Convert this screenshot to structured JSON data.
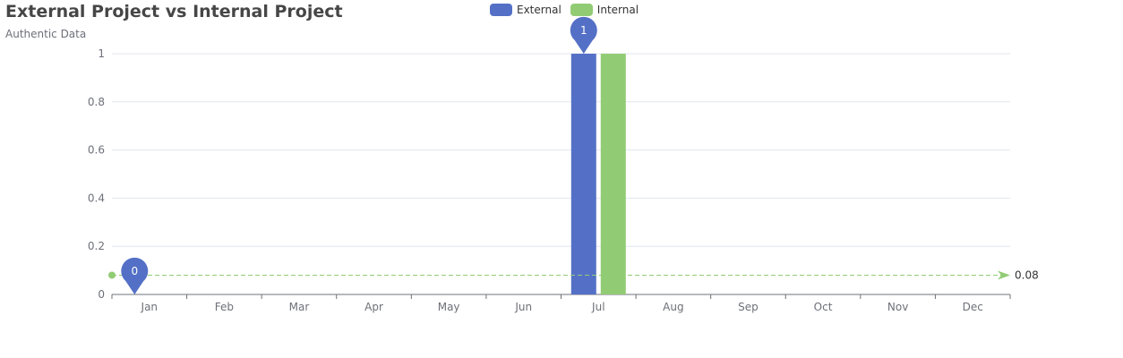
{
  "chart_data": {
    "type": "bar",
    "title": "External Project vs Internal Project",
    "subtitle": "Authentic Data",
    "categories": [
      "Jan",
      "Feb",
      "Mar",
      "Apr",
      "May",
      "Jun",
      "Jul",
      "Aug",
      "Sep",
      "Oct",
      "Nov",
      "Dec"
    ],
    "series": [
      {
        "name": "External",
        "values": [
          0,
          0,
          0,
          0,
          0,
          0,
          1,
          0,
          0,
          0,
          0,
          0
        ]
      },
      {
        "name": "Internal",
        "values": [
          0,
          0,
          0,
          0,
          0,
          0,
          1,
          0,
          0,
          0,
          0,
          0
        ]
      }
    ],
    "ylim": [
      0,
      1
    ],
    "yticks": [
      0,
      0.2,
      0.4,
      0.6,
      0.8,
      1
    ],
    "y_tick_labels": [
      "0",
      "0.2",
      "0.4",
      "0.6",
      "0.8",
      "1"
    ],
    "mark_points": [
      {
        "series": "External",
        "label": "1",
        "category": "Jul",
        "value": 1
      },
      {
        "series": "External",
        "label": "0",
        "category": "Jan",
        "value": 0
      }
    ],
    "mark_line": {
      "series": "Internal",
      "value": 0.08,
      "label": "0.08"
    },
    "grid": true,
    "legend_position": "top-center"
  },
  "colors": {
    "External": "#5470c6",
    "Internal": "#91cc75",
    "axis": "#6e7079",
    "grid": "#e0e6f1",
    "text": "#464646"
  }
}
